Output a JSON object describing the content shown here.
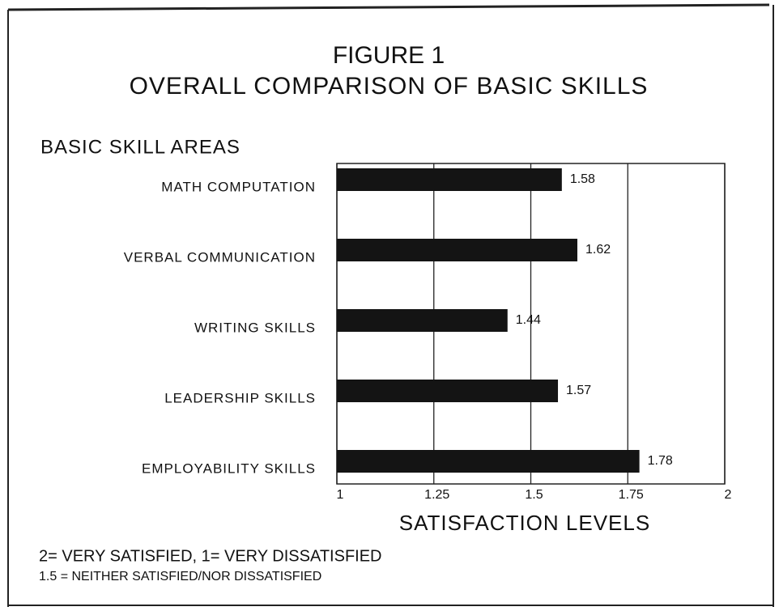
{
  "chart_data": {
    "type": "barh",
    "title": "FIGURE 1",
    "subtitle": "OVERALL COMPARISON OF BASIC SKILLS",
    "ylabel": "BASIC SKILL AREAS",
    "xlabel": "SATISFACTION LEVELS",
    "notes": [
      "2= VERY SATISFIED, 1= VERY DISSATISFIED",
      "1.5 = NEITHER SATISFIED/NOR DISSATISFIED"
    ],
    "categories": [
      "MATH COMPUTATION",
      "VERBAL COMMUNICATION",
      "WRITING SKILLS",
      "LEADERSHIP SKILLS",
      "EMPLOYABILITY SKILLS"
    ],
    "values": [
      1.58,
      1.62,
      1.44,
      1.57,
      1.78
    ],
    "color": "#141414",
    "xlim": [
      1,
      2
    ],
    "xticks": [
      1,
      1.25,
      1.5,
      1.75,
      2
    ],
    "grid": true
  }
}
